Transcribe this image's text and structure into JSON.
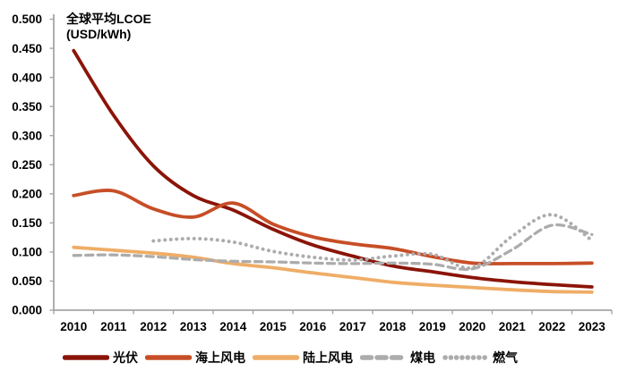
{
  "title": {
    "line1": "全球平均LCOE",
    "line2": "(USD/kWh)"
  },
  "colors": {
    "pv": "#8B1408",
    "offshore_wind": "#C74E27",
    "onshore_wind": "#EFAD67",
    "gray_series": "#ACACAC",
    "axis": "#A6A6A6",
    "text": "#000000"
  },
  "chart_data": {
    "type": "line",
    "x": [
      2010,
      2011,
      2012,
      2013,
      2014,
      2015,
      2016,
      2017,
      2018,
      2019,
      2020,
      2021,
      2022,
      2023
    ],
    "series": [
      {
        "name": "光伏",
        "color": "#8B1408",
        "style": "solid",
        "values": [
          0.446,
          0.335,
          0.248,
          0.197,
          0.172,
          0.139,
          0.112,
          0.093,
          0.076,
          0.066,
          0.056,
          0.049,
          0.044,
          0.04
        ]
      },
      {
        "name": "海上风电",
        "color": "#C74E27",
        "style": "solid",
        "values": [
          0.197,
          0.205,
          0.174,
          0.16,
          0.184,
          0.148,
          0.126,
          0.114,
          0.106,
          0.092,
          0.081,
          0.08,
          0.08,
          0.081
        ]
      },
      {
        "name": "陆上风电",
        "color": "#EFAD67",
        "style": "solid",
        "values": [
          0.108,
          0.103,
          0.098,
          0.091,
          0.08,
          0.073,
          0.064,
          0.056,
          0.048,
          0.043,
          0.039,
          0.035,
          0.032,
          0.031
        ]
      },
      {
        "name": "煤电",
        "color": "#ACACAC",
        "style": "dashed",
        "values": [
          0.094,
          0.095,
          0.092,
          0.087,
          0.084,
          0.083,
          0.081,
          0.08,
          0.081,
          0.079,
          0.071,
          0.104,
          0.146,
          0.13
        ]
      },
      {
        "name": "燃气",
        "color": "#ACACAC",
        "style": "dotted",
        "values": [
          null,
          null,
          0.119,
          0.123,
          0.117,
          0.101,
          0.091,
          0.086,
          0.093,
          0.096,
          0.073,
          0.127,
          0.164,
          0.12
        ]
      }
    ],
    "ylim": [
      0,
      0.5
    ],
    "ytick_labels": [
      "0.000",
      "0.050",
      "0.100",
      "0.150",
      "0.200",
      "0.250",
      "0.300",
      "0.350",
      "0.400",
      "0.450",
      "0.500"
    ],
    "xtick_labels": [
      "2010",
      "2011",
      "2012",
      "2013",
      "2014",
      "2015",
      "2016",
      "2017",
      "2018",
      "2019",
      "2020",
      "2021",
      "2022",
      "2023"
    ],
    "grid": false,
    "legend_position": "bottom",
    "title": "全球平均LCOE (USD/kWh)",
    "xlabel": "",
    "ylabel": ""
  }
}
